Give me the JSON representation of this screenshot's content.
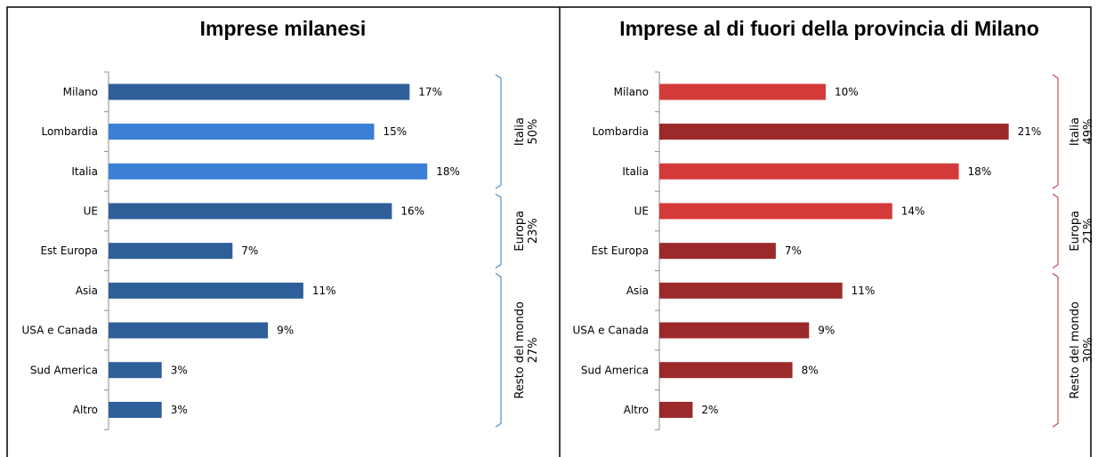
{
  "chart_data": [
    {
      "type": "bar",
      "orientation": "horizontal",
      "title": "Imprese milanesi",
      "categories": [
        "Milano",
        "Lombardia",
        "Italia",
        "UE",
        "Est Europa",
        "Asia",
        "USA e Canada",
        "Sud America",
        "Altro"
      ],
      "values": [
        17,
        15,
        18,
        16,
        7,
        11,
        9,
        3,
        3
      ],
      "value_labels": [
        "17%",
        "15%",
        "18%",
        "16%",
        "7%",
        "11%",
        "9%",
        "3%",
        "3%"
      ],
      "bar_colors": [
        "#2e5f99",
        "#3b7fd6",
        "#3b7fd6",
        "#2e5f99",
        "#2e5f99",
        "#2e5f99",
        "#2e5f99",
        "#2e5f99",
        "#2e5f99"
      ],
      "bracket_color": "#4f8ec6",
      "xlim": [
        0,
        20
      ],
      "groups": [
        {
          "name": "Italia",
          "value": "50%",
          "from": 0,
          "to": 2
        },
        {
          "name": "Europa",
          "value": "23%",
          "from": 3,
          "to": 4
        },
        {
          "name": "Resto del mondo",
          "value": "27%",
          "from": 5,
          "to": 8
        }
      ]
    },
    {
      "type": "bar",
      "orientation": "horizontal",
      "title": "Imprese al di fuori della provincia di Milano",
      "categories": [
        "Milano",
        "Lombardia",
        "Italia",
        "UE",
        "Est Europa",
        "Asia",
        "USA e Canada",
        "Sud America",
        "Altro"
      ],
      "values": [
        10,
        21,
        18,
        14,
        7,
        11,
        9,
        8,
        2
      ],
      "value_labels": [
        "10%",
        "21%",
        "18%",
        "14%",
        "7%",
        "11%",
        "9%",
        "8%",
        "2%"
      ],
      "bar_colors": [
        "#d53a3a",
        "#9c2a2a",
        "#d53a3a",
        "#d53a3a",
        "#9c2a2a",
        "#9c2a2a",
        "#9c2a2a",
        "#9c2a2a",
        "#9c2a2a"
      ],
      "bracket_color": "#c0504d",
      "xlim": [
        0,
        21.5
      ],
      "groups": [
        {
          "name": "Italia",
          "value": "49%",
          "from": 0,
          "to": 2
        },
        {
          "name": "Europa",
          "value": "21%",
          "from": 3,
          "to": 4
        },
        {
          "name": "Resto del mondo",
          "value": "30%",
          "from": 5,
          "to": 8
        }
      ]
    }
  ]
}
